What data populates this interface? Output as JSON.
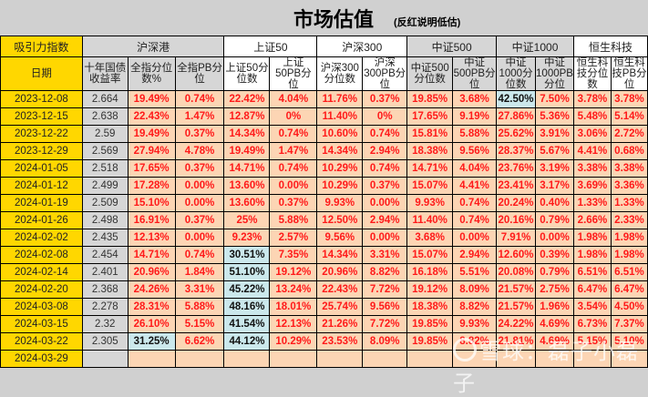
{
  "title": {
    "main": "市场估值",
    "note": "(反红说明低估)"
  },
  "header": {
    "corner_label": "吸引力指数",
    "date_label": "日期",
    "groups": [
      {
        "label": "沪深港",
        "span": 3
      },
      {
        "label": "上证50",
        "span": 2
      },
      {
        "label": "沪深300",
        "span": 2
      },
      {
        "label": "中证500",
        "span": 2
      },
      {
        "label": "中证1000",
        "span": 2
      },
      {
        "label": "恒生科技",
        "span": 2
      }
    ],
    "columns": [
      "十年国债收益率",
      "全指分位数%",
      "全指PB分位",
      "上证50分位数",
      "上证50PB分位",
      "沪深300分位数",
      "沪深300PB分位",
      "中证500分位数",
      "中证500PB分位",
      "中证1000分位数",
      "中证1000PB分位",
      "恒生科技分位数",
      "恒生科技PB分位"
    ]
  },
  "rows": [
    {
      "date": "2023-12-08",
      "yield": "2.664",
      "values": [
        "19.49%",
        "0.74%",
        "22.42%",
        "4.04%",
        "11.76%",
        "0.37%",
        "19.85%",
        "3.68%",
        "42.50%",
        "7.50%",
        "3.78%",
        "3.78%"
      ],
      "highlight": [
        8
      ]
    },
    {
      "date": "2023-12-15",
      "yield": "2.638",
      "values": [
        "22.43%",
        "1.47%",
        "12.87%",
        "0%",
        "11.40%",
        "0%",
        "17.65%",
        "9.19%",
        "27.86%",
        "5.36%",
        "5.48%",
        "5.14%"
      ],
      "highlight": []
    },
    {
      "date": "2023-12-22",
      "yield": "2.59",
      "values": [
        "19.49%",
        "0.37%",
        "14.34%",
        "0.74%",
        "10.60%",
        "0.74%",
        "15.81%",
        "5.88%",
        "25.62%",
        "3.91%",
        "3.06%",
        "2.72%"
      ],
      "highlight": []
    },
    {
      "date": "2023-12-29",
      "yield": "2.569",
      "values": [
        "27.94%",
        "4.78%",
        "19.49%",
        "1.47%",
        "14.34%",
        "2.94%",
        "18.38%",
        "9.56%",
        "28.37%",
        "5.67%",
        "4.41%",
        "0.68%"
      ],
      "highlight": []
    },
    {
      "date": "2024-01-05",
      "yield": "2.518",
      "values": [
        "17.65%",
        "0.37%",
        "14.71%",
        "0.74%",
        "10.29%",
        "0.74%",
        "14.71%",
        "4.04%",
        "23.76%",
        "3.19%",
        "3.38%",
        "3.38%"
      ],
      "highlight": []
    },
    {
      "date": "2024-01-12",
      "yield": "2.499",
      "values": [
        "17.28%",
        "0.00%",
        "13.60%",
        "0.00%",
        "10.29%",
        "0.37%",
        "15.07%",
        "4.41%",
        "23.41%",
        "3.17%",
        "3.69%",
        "3.36%"
      ],
      "highlight": []
    },
    {
      "date": "2024-01-19",
      "yield": "2.509",
      "values": [
        "15.10%",
        "0.00%",
        "13.60%",
        "0.37%",
        "9.93%",
        "0.00%",
        "9.93%",
        "0.74%",
        "20.24%",
        "0.40%",
        "1.33%",
        "1.33%"
      ],
      "highlight": []
    },
    {
      "date": "2024-01-26",
      "yield": "2.498",
      "values": [
        "16.91%",
        "0.37%",
        "25%",
        "5.88%",
        "12.50%",
        "2.94%",
        "11.40%",
        "0.74%",
        "20.16%",
        "0.79%",
        "2.66%",
        "2.33%"
      ],
      "highlight": []
    },
    {
      "date": "2024-02-02",
      "yield": "2.435",
      "values": [
        "12.13%",
        "0.00%",
        "9.23%",
        "2.57%",
        "9.56%",
        "0.00%",
        "3.68%",
        "0.00%",
        "7.91%",
        "0.00%",
        "1.98%",
        "1.98%"
      ],
      "highlight": []
    },
    {
      "date": "2024-02-08",
      "yield": "2.454",
      "values": [
        "14.71%",
        "0.74%",
        "30.51%",
        "7.35%",
        "14.34%",
        "3.31%",
        "15.07%",
        "2.94%",
        "12.60%",
        "0.39%",
        "1.98%",
        "1.98%"
      ],
      "highlight": [
        2
      ]
    },
    {
      "date": "2024-02-14",
      "yield": "2.401",
      "values": [
        "20.96%",
        "1.84%",
        "51.10%",
        "19.12%",
        "20.96%",
        "8.82%",
        "16.18%",
        "5.51%",
        "20.08%",
        "0.79%",
        "6.51%",
        "6.51%"
      ],
      "highlight": [
        2
      ]
    },
    {
      "date": "2024-02-20",
      "yield": "2.368",
      "values": [
        "24.26%",
        "3.31%",
        "45.22%",
        "13.24%",
        "22.43%",
        "7.72%",
        "19.12%",
        "8.09%",
        "21.57%",
        "2.75%",
        "6.47%",
        "6.47%"
      ],
      "highlight": [
        2
      ]
    },
    {
      "date": "2024-03-08",
      "yield": "2.278",
      "values": [
        "28.31%",
        "5.88%",
        "48.16%",
        "18.01%",
        "25.74%",
        "9.56%",
        "18.38%",
        "8.82%",
        "21.57%",
        "1.96%",
        "3.54%",
        "4.50%"
      ],
      "highlight": [
        2
      ]
    },
    {
      "date": "2024-03-15",
      "yield": "2.32",
      "values": [
        "26.10%",
        "5.15%",
        "41.54%",
        "12.13%",
        "21.26%",
        "7.72%",
        "19.85%",
        "9.93%",
        "24.22%",
        "4.69%",
        "6.73%",
        "7.37%"
      ],
      "highlight": [
        2
      ]
    },
    {
      "date": "2024-03-22",
      "yield": "2.305",
      "values": [
        "31.25%",
        "6.62%",
        "44.12%",
        "10.29%",
        "23.53%",
        "8.09%",
        "19.85%",
        "8.82%",
        "21.81%",
        "4.69%",
        "5.15%",
        "5.10%"
      ],
      "highlight": [
        0,
        2
      ]
    },
    {
      "date": "2024-03-29",
      "yield": "",
      "values": [
        "",
        "",
        "",
        "",
        "",
        "",
        "",
        "",
        "",
        "",
        "",
        ""
      ],
      "highlight": []
    }
  ],
  "watermark": {
    "text": "雪球：磊子小磊子"
  },
  "colors": {
    "yellow": "#ffd700",
    "grey": "#d6d6d6",
    "peach": "#fcd5b4",
    "highlight_blue": "#cbe8ec",
    "red_text": "#ff1a1a"
  }
}
